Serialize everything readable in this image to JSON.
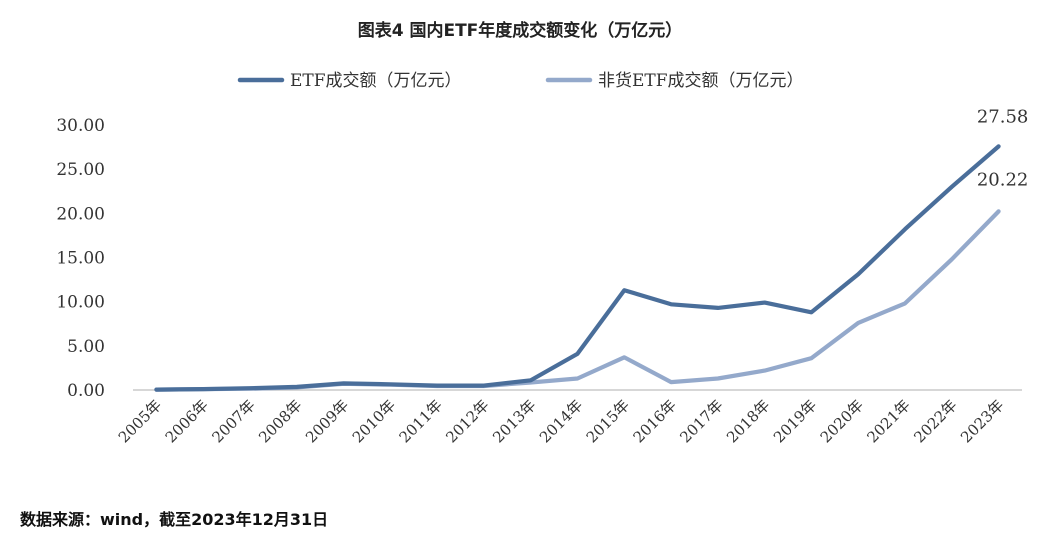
{
  "title": "图表4  国内ETF年度成交额变化（万亿元）",
  "source": "数据来源：wind，截至2023年12月31日",
  "chart_data": {
    "type": "line",
    "categories": [
      "2005年",
      "2006年",
      "2007年",
      "2008年",
      "2009年",
      "2010年",
      "2011年",
      "2012年",
      "2013年",
      "2014年",
      "2015年",
      "2016年",
      "2017年",
      "2018年",
      "2019年",
      "2020年",
      "2021年",
      "2022年",
      "2023年"
    ],
    "ylim": [
      0,
      30
    ],
    "yticks": [
      "0.00",
      "5.00",
      "10.00",
      "15.00",
      "20.00",
      "25.00",
      "30.00"
    ],
    "legend_position": "top",
    "series": [
      {
        "name": "ETF成交额（万亿元）",
        "color": "#4a6e9a",
        "values": [
          0.05,
          0.1,
          0.2,
          0.35,
          0.75,
          0.65,
          0.5,
          0.5,
          1.1,
          4.1,
          11.3,
          9.7,
          9.3,
          9.9,
          8.8,
          13.1,
          18.2,
          23.0,
          27.58
        ],
        "end_label": "27.58"
      },
      {
        "name": "非货ETF成交额（万亿元）",
        "color": "#94a9cb",
        "values": [
          0.05,
          0.1,
          0.15,
          0.3,
          0.7,
          0.6,
          0.45,
          0.45,
          0.85,
          1.3,
          3.7,
          0.9,
          1.3,
          2.2,
          3.6,
          7.6,
          9.8,
          14.8,
          20.22
        ],
        "end_label": "20.22"
      }
    ]
  }
}
